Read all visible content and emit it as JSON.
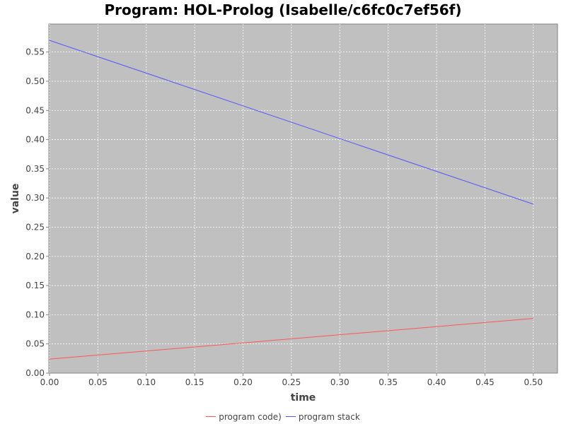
{
  "chart_data": {
    "type": "line",
    "title": "Program: HOL-Prolog (Isabelle/c6fc0c7ef56f)",
    "xlabel": "time",
    "ylabel": "value",
    "xlim": [
      0,
      0.525
    ],
    "ylim": [
      0,
      0.598
    ],
    "xticks": [
      "0.00",
      "0.05",
      "0.10",
      "0.15",
      "0.20",
      "0.25",
      "0.30",
      "0.35",
      "0.40",
      "0.45",
      "0.50"
    ],
    "yticks": [
      "0.00",
      "0.05",
      "0.10",
      "0.15",
      "0.20",
      "0.25",
      "0.30",
      "0.35",
      "0.40",
      "0.45",
      "0.50",
      "0.55"
    ],
    "grid": true,
    "legend_position": "bottom",
    "series": [
      {
        "name": "program code)",
        "color": "#ff5555",
        "x": [
          0.0,
          0.5
        ],
        "y": [
          0.024,
          0.0936
        ]
      },
      {
        "name": "program stack",
        "color": "#5555ff",
        "x": [
          0.0,
          0.5
        ],
        "y": [
          0.57,
          0.2895
        ]
      }
    ]
  }
}
